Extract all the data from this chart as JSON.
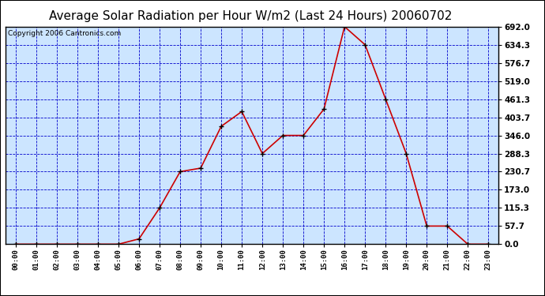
{
  "title": "Average Solar Radiation per Hour W/m2 (Last 24 Hours) 20060702",
  "copyright_text": "Copyright 2006 Cantronics.com",
  "hours": [
    "00:00",
    "01:00",
    "02:00",
    "03:00",
    "04:00",
    "05:00",
    "06:00",
    "07:00",
    "08:00",
    "09:00",
    "10:00",
    "11:00",
    "12:00",
    "13:00",
    "14:00",
    "15:00",
    "16:00",
    "17:00",
    "18:00",
    "19:00",
    "20:00",
    "21:00",
    "22:00",
    "23:00"
  ],
  "values": [
    0.0,
    0.0,
    0.0,
    0.0,
    0.0,
    0.0,
    17.0,
    115.3,
    230.7,
    242.0,
    375.0,
    422.0,
    288.3,
    346.0,
    346.0,
    430.0,
    692.0,
    634.3,
    461.3,
    288.3,
    57.7,
    57.7,
    0.0,
    0.0
  ],
  "yticks": [
    0.0,
    57.7,
    115.3,
    173.0,
    230.7,
    288.3,
    346.0,
    403.7,
    461.3,
    519.0,
    576.7,
    634.3,
    692.0
  ],
  "ymax": 692.0,
  "line_color": "#cc0000",
  "marker_color": "#000000",
  "bg_color": "#cce5ff",
  "grid_color": "#0000cc",
  "title_color": "#000000",
  "title_fontsize": 11,
  "copyright_fontsize": 6.5,
  "tick_label_color": "#000000",
  "border_color": "#000000",
  "fig_bg_color": "#ffffff"
}
